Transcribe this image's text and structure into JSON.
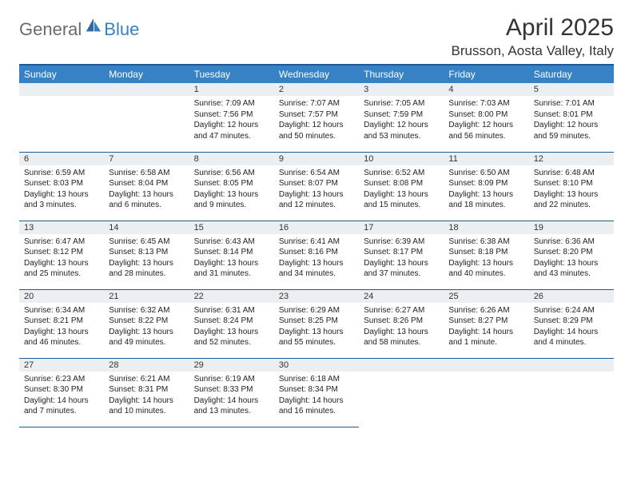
{
  "brand": {
    "part1": "General",
    "part2": "Blue"
  },
  "title": "April 2025",
  "location": "Brusson, Aosta Valley, Italy",
  "colors": {
    "header_bg": "#3782c4",
    "header_text": "#ffffff",
    "border": "#1d5a94",
    "daynum_bg": "#eceff1",
    "brand_gray": "#6a6a6a",
    "brand_blue": "#3a7fc0"
  },
  "weekdays": [
    "Sunday",
    "Monday",
    "Tuesday",
    "Wednesday",
    "Thursday",
    "Friday",
    "Saturday"
  ],
  "weeks": [
    [
      {
        "day": "",
        "sunrise": "",
        "sunset": "",
        "daylight": ""
      },
      {
        "day": "",
        "sunrise": "",
        "sunset": "",
        "daylight": ""
      },
      {
        "day": "1",
        "sunrise": "Sunrise: 7:09 AM",
        "sunset": "Sunset: 7:56 PM",
        "daylight": "Daylight: 12 hours and 47 minutes."
      },
      {
        "day": "2",
        "sunrise": "Sunrise: 7:07 AM",
        "sunset": "Sunset: 7:57 PM",
        "daylight": "Daylight: 12 hours and 50 minutes."
      },
      {
        "day": "3",
        "sunrise": "Sunrise: 7:05 AM",
        "sunset": "Sunset: 7:59 PM",
        "daylight": "Daylight: 12 hours and 53 minutes."
      },
      {
        "day": "4",
        "sunrise": "Sunrise: 7:03 AM",
        "sunset": "Sunset: 8:00 PM",
        "daylight": "Daylight: 12 hours and 56 minutes."
      },
      {
        "day": "5",
        "sunrise": "Sunrise: 7:01 AM",
        "sunset": "Sunset: 8:01 PM",
        "daylight": "Daylight: 12 hours and 59 minutes."
      }
    ],
    [
      {
        "day": "6",
        "sunrise": "Sunrise: 6:59 AM",
        "sunset": "Sunset: 8:03 PM",
        "daylight": "Daylight: 13 hours and 3 minutes."
      },
      {
        "day": "7",
        "sunrise": "Sunrise: 6:58 AM",
        "sunset": "Sunset: 8:04 PM",
        "daylight": "Daylight: 13 hours and 6 minutes."
      },
      {
        "day": "8",
        "sunrise": "Sunrise: 6:56 AM",
        "sunset": "Sunset: 8:05 PM",
        "daylight": "Daylight: 13 hours and 9 minutes."
      },
      {
        "day": "9",
        "sunrise": "Sunrise: 6:54 AM",
        "sunset": "Sunset: 8:07 PM",
        "daylight": "Daylight: 13 hours and 12 minutes."
      },
      {
        "day": "10",
        "sunrise": "Sunrise: 6:52 AM",
        "sunset": "Sunset: 8:08 PM",
        "daylight": "Daylight: 13 hours and 15 minutes."
      },
      {
        "day": "11",
        "sunrise": "Sunrise: 6:50 AM",
        "sunset": "Sunset: 8:09 PM",
        "daylight": "Daylight: 13 hours and 18 minutes."
      },
      {
        "day": "12",
        "sunrise": "Sunrise: 6:48 AM",
        "sunset": "Sunset: 8:10 PM",
        "daylight": "Daylight: 13 hours and 22 minutes."
      }
    ],
    [
      {
        "day": "13",
        "sunrise": "Sunrise: 6:47 AM",
        "sunset": "Sunset: 8:12 PM",
        "daylight": "Daylight: 13 hours and 25 minutes."
      },
      {
        "day": "14",
        "sunrise": "Sunrise: 6:45 AM",
        "sunset": "Sunset: 8:13 PM",
        "daylight": "Daylight: 13 hours and 28 minutes."
      },
      {
        "day": "15",
        "sunrise": "Sunrise: 6:43 AM",
        "sunset": "Sunset: 8:14 PM",
        "daylight": "Daylight: 13 hours and 31 minutes."
      },
      {
        "day": "16",
        "sunrise": "Sunrise: 6:41 AM",
        "sunset": "Sunset: 8:16 PM",
        "daylight": "Daylight: 13 hours and 34 minutes."
      },
      {
        "day": "17",
        "sunrise": "Sunrise: 6:39 AM",
        "sunset": "Sunset: 8:17 PM",
        "daylight": "Daylight: 13 hours and 37 minutes."
      },
      {
        "day": "18",
        "sunrise": "Sunrise: 6:38 AM",
        "sunset": "Sunset: 8:18 PM",
        "daylight": "Daylight: 13 hours and 40 minutes."
      },
      {
        "day": "19",
        "sunrise": "Sunrise: 6:36 AM",
        "sunset": "Sunset: 8:20 PM",
        "daylight": "Daylight: 13 hours and 43 minutes."
      }
    ],
    [
      {
        "day": "20",
        "sunrise": "Sunrise: 6:34 AM",
        "sunset": "Sunset: 8:21 PM",
        "daylight": "Daylight: 13 hours and 46 minutes."
      },
      {
        "day": "21",
        "sunrise": "Sunrise: 6:32 AM",
        "sunset": "Sunset: 8:22 PM",
        "daylight": "Daylight: 13 hours and 49 minutes."
      },
      {
        "day": "22",
        "sunrise": "Sunrise: 6:31 AM",
        "sunset": "Sunset: 8:24 PM",
        "daylight": "Daylight: 13 hours and 52 minutes."
      },
      {
        "day": "23",
        "sunrise": "Sunrise: 6:29 AM",
        "sunset": "Sunset: 8:25 PM",
        "daylight": "Daylight: 13 hours and 55 minutes."
      },
      {
        "day": "24",
        "sunrise": "Sunrise: 6:27 AM",
        "sunset": "Sunset: 8:26 PM",
        "daylight": "Daylight: 13 hours and 58 minutes."
      },
      {
        "day": "25",
        "sunrise": "Sunrise: 6:26 AM",
        "sunset": "Sunset: 8:27 PM",
        "daylight": "Daylight: 14 hours and 1 minute."
      },
      {
        "day": "26",
        "sunrise": "Sunrise: 6:24 AM",
        "sunset": "Sunset: 8:29 PM",
        "daylight": "Daylight: 14 hours and 4 minutes."
      }
    ],
    [
      {
        "day": "27",
        "sunrise": "Sunrise: 6:23 AM",
        "sunset": "Sunset: 8:30 PM",
        "daylight": "Daylight: 14 hours and 7 minutes."
      },
      {
        "day": "28",
        "sunrise": "Sunrise: 6:21 AM",
        "sunset": "Sunset: 8:31 PM",
        "daylight": "Daylight: 14 hours and 10 minutes."
      },
      {
        "day": "29",
        "sunrise": "Sunrise: 6:19 AM",
        "sunset": "Sunset: 8:33 PM",
        "daylight": "Daylight: 14 hours and 13 minutes."
      },
      {
        "day": "30",
        "sunrise": "Sunrise: 6:18 AM",
        "sunset": "Sunset: 8:34 PM",
        "daylight": "Daylight: 14 hours and 16 minutes."
      },
      {
        "day": "",
        "sunrise": "",
        "sunset": "",
        "daylight": ""
      },
      {
        "day": "",
        "sunrise": "",
        "sunset": "",
        "daylight": ""
      },
      {
        "day": "",
        "sunrise": "",
        "sunset": "",
        "daylight": ""
      }
    ]
  ]
}
